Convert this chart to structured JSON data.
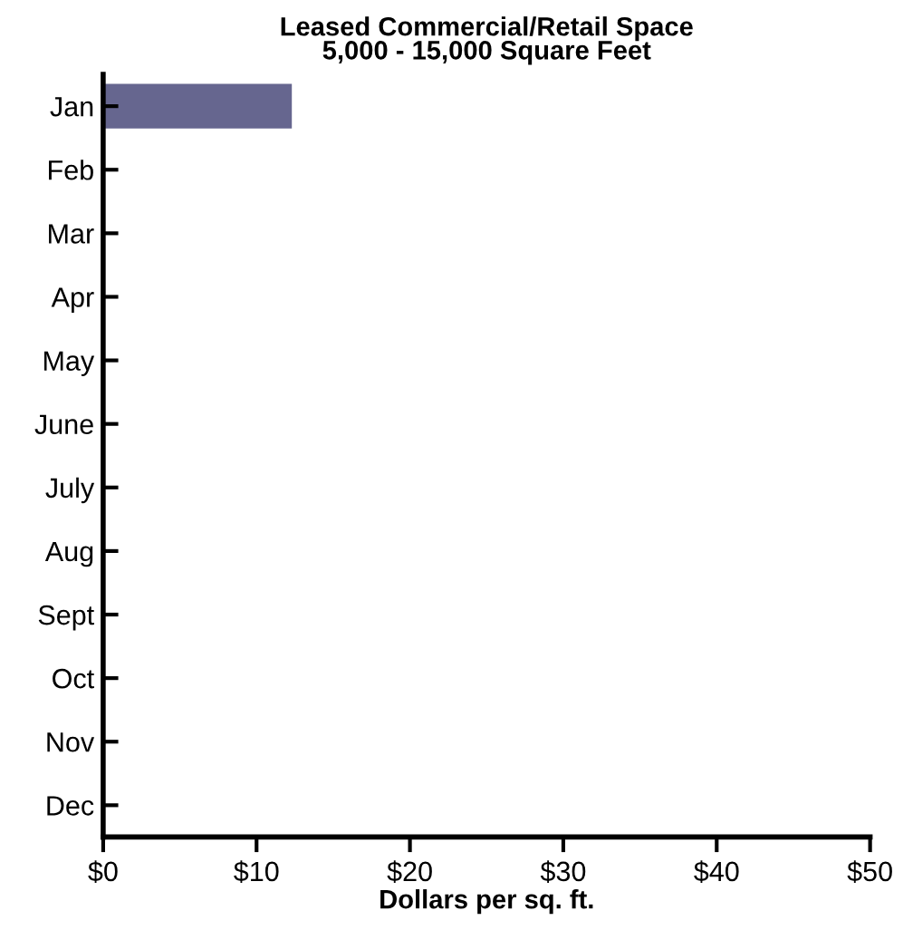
{
  "chart_data": {
    "type": "bar",
    "orientation": "horizontal",
    "title": "Leased Commercial/Retail Space\n5,000 - 15,000 Square Feet",
    "xlabel": "Dollars per sq. ft.",
    "categories": [
      "Jan",
      "Feb",
      "Mar",
      "Apr",
      "May",
      "June",
      "July",
      "Aug",
      "Sept",
      "Oct",
      "Nov",
      "Dec"
    ],
    "values": [
      12.3,
      null,
      null,
      null,
      null,
      null,
      null,
      null,
      null,
      null,
      null,
      null
    ],
    "color": "#66668f",
    "xlim": [
      0,
      50
    ],
    "xticks": [
      {
        "value": 0,
        "label": "$0"
      },
      {
        "value": 10,
        "label": "$10"
      },
      {
        "value": 20,
        "label": "$20"
      },
      {
        "value": 30,
        "label": "$30"
      },
      {
        "value": 40,
        "label": "$40"
      },
      {
        "value": 50,
        "label": "$50"
      }
    ],
    "grid": false,
    "legend": false
  }
}
